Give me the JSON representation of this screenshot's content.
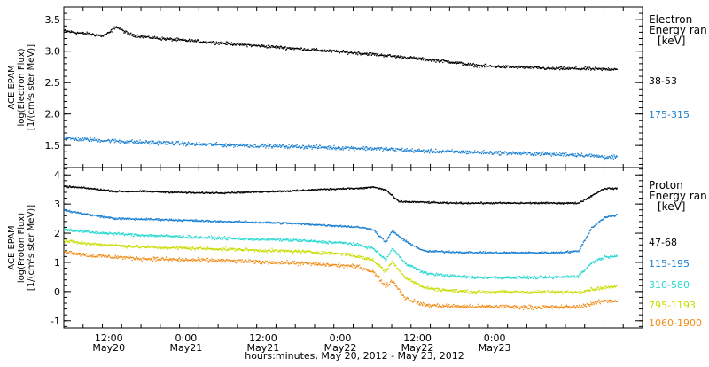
{
  "chart_data": [
    {
      "type": "scatter",
      "id": "electron",
      "ylabel_lines": [
        "ACE EPAM",
        "log(Electron Flux)",
        "[1/(cm²s ster MeV)]"
      ],
      "ylim": [
        1.15,
        3.7
      ],
      "yticks": [
        1.5,
        2.0,
        2.5,
        3.0,
        3.5
      ],
      "ytick_labels": [
        "1.5",
        "2.0",
        "2.5",
        "3.0",
        "3.5"
      ],
      "legend": {
        "header_lines": [
          "Electron",
          "Energy ran",
          "[keV]"
        ],
        "position": "right"
      },
      "series": [
        {
          "name": "38-53",
          "color": "#000000",
          "x": [
            0,
            2,
            4,
            6,
            7,
            8,
            10,
            12,
            16,
            20,
            24,
            28,
            32,
            36,
            40,
            44,
            48,
            52,
            56,
            60,
            64,
            68,
            72,
            76,
            80,
            84,
            86
          ],
          "y": [
            3.33,
            3.3,
            3.28,
            3.25,
            3.3,
            3.4,
            3.28,
            3.24,
            3.2,
            3.17,
            3.14,
            3.11,
            3.08,
            3.05,
            3.02,
            2.99,
            2.96,
            2.92,
            2.88,
            2.84,
            2.78,
            2.76,
            2.75,
            2.73,
            2.73,
            2.72,
            2.73
          ],
          "spread": 0.035
        },
        {
          "name": "175-315",
          "color": "#1a7fd0",
          "x": [
            0,
            4,
            8,
            12,
            16,
            20,
            24,
            28,
            32,
            36,
            40,
            44,
            48,
            52,
            56,
            60,
            64,
            68,
            72,
            76,
            80,
            84,
            86
          ],
          "y": [
            1.62,
            1.6,
            1.58,
            1.56,
            1.55,
            1.53,
            1.52,
            1.51,
            1.5,
            1.49,
            1.48,
            1.47,
            1.46,
            1.44,
            1.42,
            1.41,
            1.4,
            1.39,
            1.38,
            1.37,
            1.36,
            1.33,
            1.32
          ],
          "spread": 0.045
        }
      ]
    },
    {
      "type": "scatter",
      "id": "proton",
      "ylabel_lines": [
        "ACE EPAM",
        "log(Proton Flux)",
        "[1/(cm²s ster MeV)]"
      ],
      "ylim": [
        -1.25,
        4.25
      ],
      "yticks": [
        -1,
        0,
        1,
        2,
        3,
        4
      ],
      "ytick_labels": [
        "-1",
        "0",
        "1",
        "2",
        "3",
        "4"
      ],
      "legend": {
        "header_lines": [
          "Proton",
          "Energy ran",
          "[keV]"
        ],
        "position": "right"
      },
      "series": [
        {
          "name": "47-68",
          "color": "#000000",
          "x": [
            0,
            4,
            8,
            12,
            16,
            20,
            24,
            28,
            32,
            36,
            40,
            44,
            46,
            48,
            50,
            52,
            56,
            60,
            64,
            68,
            72,
            76,
            80,
            84,
            86
          ],
          "y": [
            3.62,
            3.55,
            3.45,
            3.45,
            3.43,
            3.4,
            3.4,
            3.42,
            3.45,
            3.47,
            3.52,
            3.55,
            3.55,
            3.6,
            3.5,
            3.1,
            3.08,
            3.05,
            3.05,
            3.05,
            3.05,
            3.05,
            3.05,
            3.55,
            3.55
          ],
          "spread": 0.04
        },
        {
          "name": "115-195",
          "color": "#1a7fd0",
          "x": [
            0,
            4,
            8,
            12,
            16,
            20,
            24,
            28,
            32,
            36,
            40,
            44,
            46,
            48,
            50,
            51,
            53,
            56,
            60,
            64,
            68,
            72,
            76,
            80,
            82,
            84,
            86
          ],
          "y": [
            2.8,
            2.65,
            2.52,
            2.5,
            2.48,
            2.45,
            2.42,
            2.4,
            2.38,
            2.35,
            2.3,
            2.25,
            2.22,
            2.15,
            1.7,
            2.1,
            1.75,
            1.4,
            1.38,
            1.35,
            1.35,
            1.35,
            1.35,
            1.4,
            2.2,
            2.55,
            2.65
          ],
          "spread": 0.05
        },
        {
          "name": "310-580",
          "color": "#27d8d0",
          "x": [
            0,
            4,
            8,
            12,
            16,
            20,
            24,
            28,
            32,
            36,
            40,
            44,
            46,
            48,
            50,
            51,
            53,
            56,
            60,
            64,
            68,
            72,
            76,
            80,
            82,
            84,
            86
          ],
          "y": [
            2.15,
            2.05,
            2.0,
            1.95,
            1.92,
            1.88,
            1.85,
            1.82,
            1.8,
            1.78,
            1.72,
            1.68,
            1.6,
            1.5,
            1.1,
            1.5,
            1.0,
            0.65,
            0.55,
            0.5,
            0.5,
            0.5,
            0.5,
            0.55,
            1.0,
            1.2,
            1.25
          ],
          "spread": 0.07
        },
        {
          "name": "795-1193",
          "color": "#c8dc00",
          "x": [
            0,
            4,
            8,
            12,
            16,
            20,
            24,
            28,
            32,
            36,
            40,
            44,
            46,
            48,
            50,
            51,
            53,
            56,
            60,
            64,
            68,
            72,
            76,
            80,
            82,
            84,
            86
          ],
          "y": [
            1.75,
            1.65,
            1.6,
            1.55,
            1.52,
            1.5,
            1.48,
            1.45,
            1.42,
            1.4,
            1.35,
            1.3,
            1.2,
            1.1,
            0.7,
            1.05,
            0.5,
            0.15,
            0.05,
            0.0,
            0.0,
            0.0,
            0.0,
            0.0,
            0.1,
            0.15,
            0.2
          ],
          "spread": 0.08
        },
        {
          "name": "1060-1900",
          "color": "#f08c18",
          "x": [
            0,
            4,
            8,
            12,
            16,
            20,
            24,
            28,
            32,
            36,
            40,
            44,
            46,
            48,
            50,
            51,
            53,
            56,
            60,
            64,
            68,
            72,
            76,
            80,
            82,
            84,
            86
          ],
          "y": [
            1.4,
            1.25,
            1.2,
            1.15,
            1.12,
            1.1,
            1.08,
            1.05,
            1.02,
            1.0,
            0.95,
            0.9,
            0.85,
            0.7,
            0.2,
            0.4,
            -0.2,
            -0.45,
            -0.48,
            -0.5,
            -0.5,
            -0.52,
            -0.52,
            -0.5,
            -0.4,
            -0.3,
            -0.3
          ],
          "spread": 0.1
        }
      ]
    }
  ],
  "x_axis": {
    "unit": "hours since 2012-05-20 05:00",
    "xlim": [
      0,
      90
    ],
    "tick_labels": [
      {
        "x": 7,
        "time": "12:00",
        "date": "May20"
      },
      {
        "x": 19,
        "time": "0:00",
        "date": "May21"
      },
      {
        "x": 31,
        "time": "12:00",
        "date": "May21"
      },
      {
        "x": 43,
        "time": "0:00",
        "date": "May22"
      },
      {
        "x": 55,
        "time": "12:00",
        "date": "May22"
      },
      {
        "x": 67,
        "time": "0:00",
        "date": "May23"
      }
    ],
    "minor_step": 3,
    "xlabel": "hours:minutes, May 20, 2012 - May 23, 2012"
  }
}
